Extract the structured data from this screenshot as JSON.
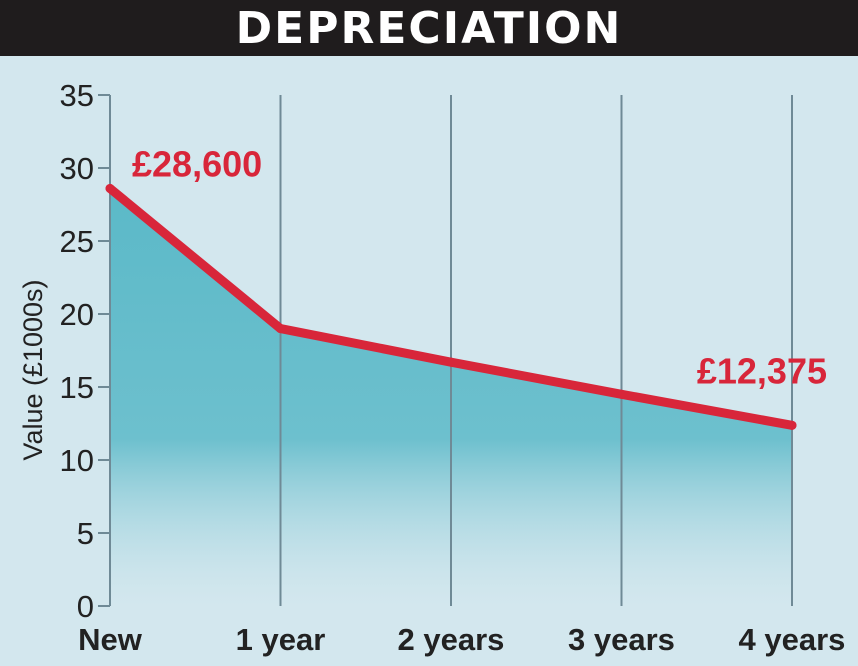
{
  "title": "DEPRECIATION",
  "colors": {
    "background": "#d3e7ee",
    "title_bar": "#1f1c1d",
    "line": "#d8263a",
    "area_fill": "#5bb9c8",
    "gridline": "#6f8a96"
  },
  "chart_data": {
    "type": "area",
    "categories": [
      "New",
      "1 year",
      "2 years",
      "3 years",
      "4 years"
    ],
    "values": [
      28.6,
      19.0,
      16.7,
      14.5,
      12.375
    ],
    "ylabel": "Value (£1000s)",
    "xlabel": "",
    "ylim": [
      0,
      35
    ],
    "yticks": [
      0,
      5,
      10,
      15,
      20,
      25,
      30,
      35
    ],
    "grid": "vertical",
    "annotations": [
      {
        "index": 0,
        "text": "£28,600"
      },
      {
        "index": 4,
        "text": "£12,375"
      }
    ]
  }
}
